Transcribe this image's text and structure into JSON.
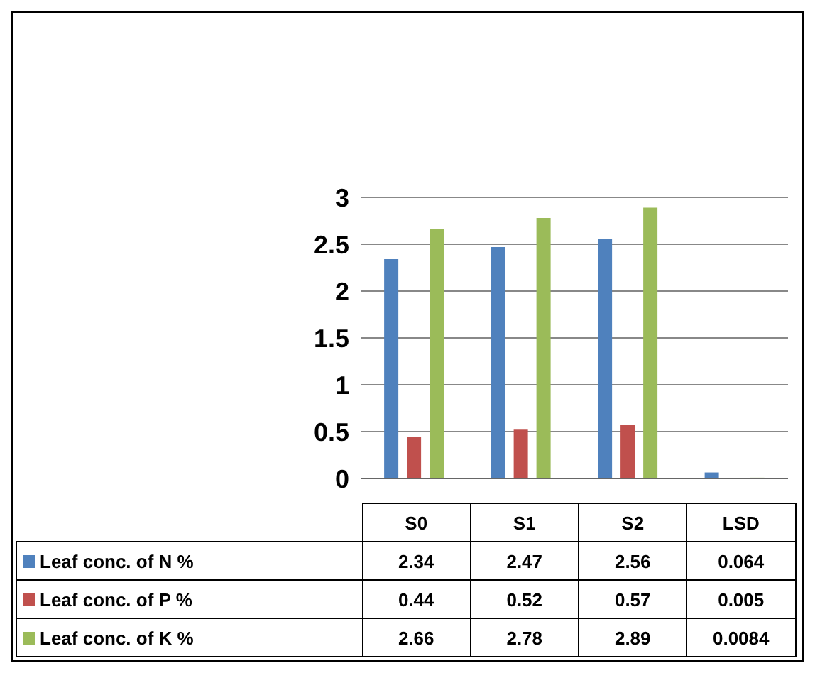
{
  "chart_data": {
    "type": "bar",
    "categories": [
      "S0",
      "S1",
      "S2",
      "LSD"
    ],
    "series": [
      {
        "name": "Leaf conc. of N %",
        "color": "#4f81bd",
        "values": [
          2.34,
          2.47,
          2.56,
          0.064
        ]
      },
      {
        "name": "Leaf conc. of P %",
        "color": "#c0504d",
        "values": [
          0.44,
          0.52,
          0.57,
          0.005
        ]
      },
      {
        "name": "Leaf conc. of K %",
        "color": "#9bbb59",
        "values": [
          2.66,
          2.78,
          2.89,
          0.0084
        ]
      }
    ],
    "ylim": [
      0,
      3
    ],
    "yticks": [
      0,
      0.5,
      1,
      1.5,
      2,
      2.5,
      3
    ],
    "grid": "y",
    "legend": "bottom",
    "data_labels": true
  }
}
